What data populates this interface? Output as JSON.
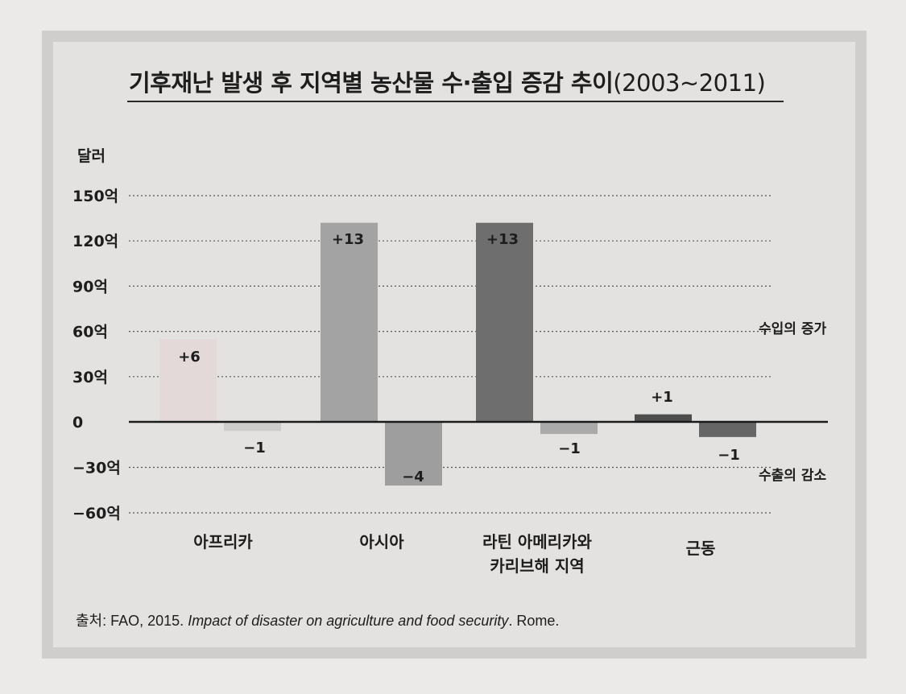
{
  "title": "기후재난 발생 후 지역별 농산물 수·출입 증감 추이",
  "title_years": "(2003~2011)",
  "source": {
    "prefix": "출처: FAO, 2015. ",
    "work": "Impact of disaster on agriculture and food security",
    "suffix": ". Rome."
  },
  "chart_data": {
    "type": "bar",
    "unit_label": "달러",
    "categories": [
      "아프리카",
      "아시아",
      "라틴 아메리카와\n카리브해 지역",
      "근동"
    ],
    "series": [
      {
        "name": "수입의 증가",
        "values": [
          55,
          132,
          132,
          5
        ],
        "labels": [
          "+6",
          "+13",
          "+13",
          "+1"
        ],
        "colors": [
          "#e2d9d8",
          "#a3a3a3",
          "#6e6e6e",
          "#4d4d4d"
        ]
      },
      {
        "name": "수출의 감소",
        "values": [
          -6,
          -42,
          -8,
          -10
        ],
        "labels": [
          "−1",
          "−4",
          "−1",
          "−1"
        ],
        "colors": [
          "#cfcdcb",
          "#9e9e9e",
          "#aaaaaa",
          "#666666"
        ]
      }
    ],
    "ylim": [
      -60,
      150
    ],
    "yticks": [
      150,
      120,
      90,
      60,
      30,
      0,
      -30,
      -60
    ],
    "ytick_labels": [
      "150억",
      "120억",
      "90억",
      "60억",
      "30억",
      "0",
      "−30억",
      "−60억"
    ],
    "grid": true,
    "notes": {
      "import": "수입의 증가",
      "export": "수출의 감소"
    }
  }
}
